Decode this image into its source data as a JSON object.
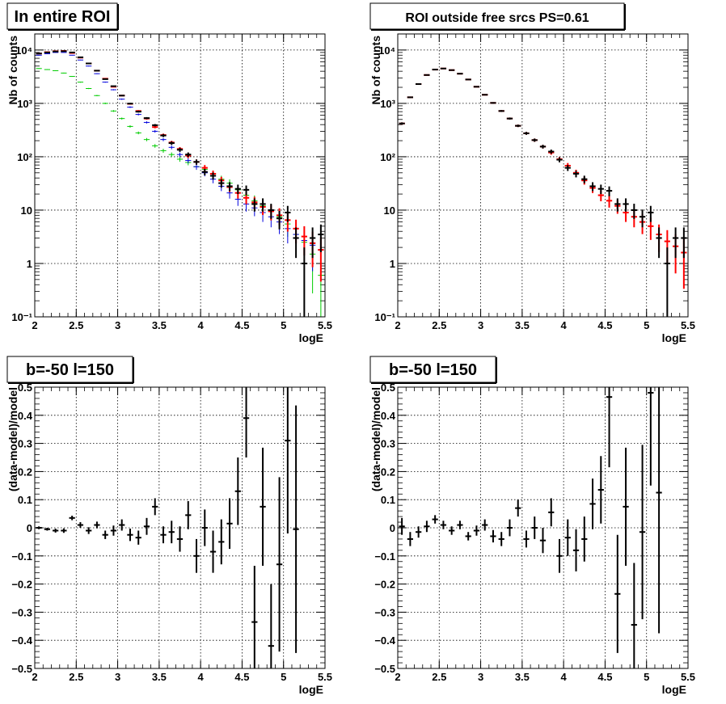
{
  "chart_data": [
    {
      "type": "scatter",
      "title": "In entire ROI",
      "xlabel": "logE",
      "ylabel": "Nb of counts",
      "xlim": [
        2,
        5.5
      ],
      "ylim": [
        0.1,
        20000
      ],
      "yscale": "log",
      "grid": true,
      "x_ticks": [
        "2",
        "2.5",
        "3",
        "3.5",
        "4",
        "4.5",
        "5",
        "5.5"
      ],
      "y_ticks": [
        "10⁻¹",
        "1",
        "10",
        "10²",
        "10³",
        "10⁴"
      ],
      "x_width": 0.1,
      "series": [
        {
          "color": "#00cc00",
          "x": [
            2.05,
            2.15,
            2.25,
            2.35,
            2.45,
            2.55,
            2.65,
            2.75,
            2.85,
            2.95,
            3.05,
            3.15,
            3.25,
            3.35,
            3.45,
            3.55,
            3.65,
            3.75,
            3.85,
            3.95,
            4.05,
            4.15,
            4.25,
            4.35,
            4.45,
            4.55,
            4.65,
            4.75,
            4.85,
            4.95,
            5.05,
            5.15,
            5.25,
            5.35,
            5.45
          ],
          "values": [
            4500,
            4300,
            4100,
            3700,
            3200,
            2500,
            1900,
            1400,
            1000,
            720,
            520,
            370,
            280,
            210,
            160,
            130,
            110,
            90,
            78,
            65,
            58,
            48,
            38,
            32,
            24,
            19,
            15,
            12,
            9.5,
            7.5,
            5.5,
            3.5,
            2.5,
            1.5,
            0.6
          ]
        },
        {
          "color": "#0000dd",
          "x": [
            2.05,
            2.15,
            2.25,
            2.35,
            2.45,
            2.55,
            2.65,
            2.75,
            2.85,
            2.95,
            3.05,
            3.15,
            3.25,
            3.35,
            3.45,
            3.55,
            3.65,
            3.75,
            3.85,
            3.95,
            4.05,
            4.15,
            4.25,
            4.35,
            4.45,
            4.55,
            4.65,
            4.75,
            4.85,
            4.95,
            5.05,
            5.15,
            5.25,
            5.35,
            5.45
          ],
          "values": [
            8000,
            8500,
            9000,
            9000,
            8000,
            6500,
            5000,
            3600,
            2500,
            1800,
            1200,
            850,
            620,
            440,
            300,
            210,
            150,
            110,
            85,
            65,
            50,
            38,
            28,
            21,
            16,
            13,
            11,
            9,
            7.5,
            6,
            4.5,
            3.5,
            2.7,
            2.2,
            1.8
          ]
        },
        {
          "color": "#ff0000",
          "x": [
            2.05,
            2.15,
            2.25,
            2.35,
            2.45,
            2.55,
            2.65,
            2.75,
            2.85,
            2.95,
            3.05,
            3.15,
            3.25,
            3.35,
            3.45,
            3.55,
            3.65,
            3.75,
            3.85,
            3.95,
            4.05,
            4.15,
            4.25,
            4.35,
            4.45,
            4.55,
            4.65,
            4.75,
            4.85,
            4.95,
            5.05,
            5.15,
            5.25,
            5.35,
            5.45
          ],
          "values": [
            8600,
            9100,
            9500,
            9600,
            8800,
            7200,
            5600,
            4100,
            2900,
            2050,
            1400,
            980,
            720,
            520,
            360,
            255,
            185,
            140,
            105,
            80,
            62,
            48,
            36,
            27,
            21,
            17,
            14,
            11.5,
            9.5,
            8,
            6.5,
            4.5,
            3.2,
            2.4,
            1.8
          ]
        },
        {
          "color": "#000000",
          "x": [
            2.05,
            2.15,
            2.25,
            2.35,
            2.45,
            2.55,
            2.65,
            2.75,
            2.85,
            2.95,
            3.05,
            3.15,
            3.25,
            3.35,
            3.45,
            3.55,
            3.65,
            3.75,
            3.85,
            3.95,
            4.05,
            4.15,
            4.25,
            4.35,
            4.45,
            4.55,
            4.65,
            4.75,
            4.85,
            4.95,
            5.05,
            5.15,
            5.25,
            5.35,
            5.45
          ],
          "values": [
            8600,
            9000,
            9400,
            9500,
            9000,
            7300,
            5600,
            4100,
            2850,
            2100,
            1400,
            990,
            700,
            530,
            390,
            250,
            180,
            135,
            110,
            80,
            52,
            44,
            32,
            28,
            25,
            24,
            13,
            13,
            10,
            7,
            9,
            3,
            1,
            3,
            3.5
          ]
        }
      ]
    },
    {
      "type": "scatter",
      "title": "ROI outside free srcs PS=0.61",
      "xlabel": "logE",
      "ylabel": "Nb of counts",
      "xlim": [
        2,
        5.5
      ],
      "ylim": [
        0.1,
        20000
      ],
      "yscale": "log",
      "grid": true,
      "x_ticks": [
        "2",
        "2.5",
        "3",
        "3.5",
        "4",
        "4.5",
        "5",
        "5.5"
      ],
      "y_ticks": [
        "10⁻¹",
        "1",
        "10",
        "10²",
        "10³",
        "10⁴"
      ],
      "x_width": 0.1,
      "series": [
        {
          "color": "#ff0000",
          "x": [
            2.05,
            2.15,
            2.25,
            2.35,
            2.45,
            2.55,
            2.65,
            2.75,
            2.85,
            2.95,
            3.05,
            3.15,
            3.25,
            3.35,
            3.45,
            3.55,
            3.65,
            3.75,
            3.85,
            3.95,
            4.05,
            4.15,
            4.25,
            4.35,
            4.45,
            4.55,
            4.65,
            4.75,
            4.85,
            4.95,
            5.05,
            5.15,
            5.25,
            5.35,
            5.45
          ],
          "values": [
            420,
            1300,
            2300,
            3400,
            4300,
            4500,
            4200,
            3600,
            2800,
            2050,
            1450,
            1020,
            720,
            520,
            380,
            275,
            205,
            155,
            120,
            90,
            68,
            50,
            36,
            26,
            19,
            15,
            12,
            9,
            7.5,
            6,
            5,
            3.5,
            2.6,
            2.1,
            1.6
          ]
        },
        {
          "color": "#000000",
          "x": [
            2.05,
            2.15,
            2.25,
            2.35,
            2.45,
            2.55,
            2.65,
            2.75,
            2.85,
            2.95,
            3.05,
            3.15,
            3.25,
            3.35,
            3.45,
            3.55,
            3.65,
            3.75,
            3.85,
            3.95,
            4.05,
            4.15,
            4.25,
            4.35,
            4.45,
            4.55,
            4.65,
            4.75,
            4.85,
            4.95,
            5.05,
            5.15,
            5.25,
            5.35,
            5.45
          ],
          "values": [
            420,
            1300,
            2300,
            3400,
            4300,
            4500,
            4200,
            3600,
            2800,
            2050,
            1450,
            1020,
            720,
            520,
            380,
            275,
            205,
            155,
            125,
            88,
            62,
            48,
            38,
            28,
            25,
            23,
            13,
            13,
            10,
            7.5,
            9,
            3,
            1,
            3,
            3
          ]
        }
      ]
    },
    {
      "type": "scatter",
      "title": "b=-50 l=150",
      "xlabel": "logE",
      "ylabel": "(data-model)/model",
      "xlim": [
        2,
        5.5
      ],
      "ylim": [
        -0.5,
        0.5
      ],
      "grid": true,
      "x_ticks": [
        "2",
        "2.5",
        "3",
        "3.5",
        "4",
        "4.5",
        "5",
        "5.5"
      ],
      "y_ticks": [
        "−0.5",
        "−0.4",
        "−0.3",
        "−0.2",
        "−0.1",
        "0",
        "0.1",
        "0.2",
        "0.3",
        "0.4",
        "0.5"
      ],
      "x_width": 0.1,
      "series": [
        {
          "color": "#000000",
          "x": [
            2.05,
            2.15,
            2.25,
            2.35,
            2.45,
            2.55,
            2.65,
            2.75,
            2.85,
            2.95,
            3.05,
            3.15,
            3.25,
            3.35,
            3.45,
            3.55,
            3.65,
            3.75,
            3.85,
            3.95,
            4.05,
            4.15,
            4.25,
            4.35,
            4.45,
            4.55,
            4.65,
            4.75,
            4.85,
            4.95,
            5.05,
            5.15
          ],
          "values": [
            0,
            -0.005,
            -0.01,
            -0.01,
            0.035,
            0.01,
            -0.01,
            0.01,
            -0.025,
            -0.01,
            0.01,
            -0.025,
            -0.035,
            0.005,
            0.075,
            -0.025,
            -0.015,
            -0.04,
            0.045,
            -0.1,
            0.0,
            -0.085,
            -0.05,
            0.015,
            0.13,
            0.39,
            -0.335,
            0.075,
            -0.42,
            -0.13,
            0.31,
            -0.005
          ],
          "errors": [
            0.005,
            0.005,
            0.007,
            0.008,
            0.008,
            0.01,
            0.012,
            0.012,
            0.015,
            0.018,
            0.02,
            0.022,
            0.025,
            0.03,
            0.03,
            0.03,
            0.04,
            0.045,
            0.05,
            0.06,
            0.065,
            0.075,
            0.08,
            0.09,
            0.12,
            0.14,
            0.2,
            0.21,
            0.22,
            0.31,
            0.33,
            0.44
          ]
        }
      ]
    },
    {
      "type": "scatter",
      "title": "b=-50 l=150",
      "xlabel": "logE",
      "ylabel": "(data-model)/model",
      "xlim": [
        2,
        5.5
      ],
      "ylim": [
        -0.5,
        0.5
      ],
      "grid": true,
      "x_ticks": [
        "2",
        "2.5",
        "3",
        "3.5",
        "4",
        "4.5",
        "5",
        "5.5"
      ],
      "y_ticks": [
        "−0.5",
        "−0.4",
        "−0.3",
        "−0.2",
        "−0.1",
        "0",
        "0.1",
        "0.2",
        "0.3",
        "0.4",
        "0.5"
      ],
      "x_width": 0.1,
      "series": [
        {
          "color": "#000000",
          "x": [
            2.05,
            2.15,
            2.25,
            2.35,
            2.45,
            2.55,
            2.65,
            2.75,
            2.85,
            2.95,
            3.05,
            3.15,
            3.25,
            3.35,
            3.45,
            3.55,
            3.65,
            3.75,
            3.85,
            3.95,
            4.05,
            4.15,
            4.25,
            4.35,
            4.45,
            4.55,
            4.65,
            4.75,
            4.85,
            4.95,
            5.05,
            5.15
          ],
          "values": [
            0.005,
            -0.04,
            -0.015,
            0.005,
            0.03,
            0.01,
            -0.01,
            0.01,
            -0.03,
            -0.01,
            0.01,
            -0.03,
            -0.04,
            0.0,
            0.07,
            -0.04,
            0.0,
            -0.045,
            0.055,
            -0.1,
            -0.035,
            -0.08,
            -0.04,
            0.085,
            0.135,
            0.465,
            -0.235,
            0.075,
            -0.345,
            -0.015,
            0.48,
            0.125
          ],
          "errors": [
            0.03,
            0.025,
            0.02,
            0.02,
            0.015,
            0.015,
            0.015,
            0.015,
            0.015,
            0.018,
            0.02,
            0.022,
            0.025,
            0.03,
            0.03,
            0.03,
            0.04,
            0.045,
            0.05,
            0.06,
            0.065,
            0.075,
            0.08,
            0.09,
            0.12,
            0.25,
            0.21,
            0.21,
            0.22,
            0.31,
            0.33,
            0.5
          ]
        }
      ]
    }
  ]
}
